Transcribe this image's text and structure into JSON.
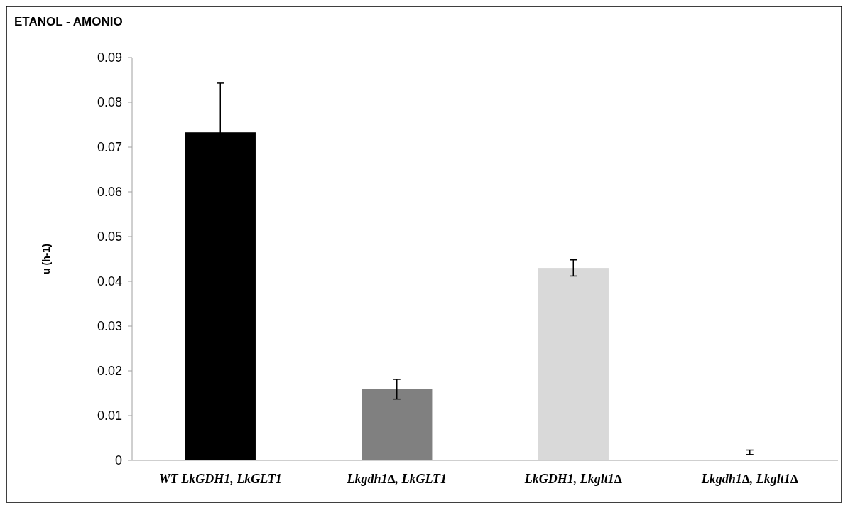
{
  "chart_data": {
    "type": "bar",
    "title": "ETANOL - AMONIO",
    "ylabel": "u (h-1)",
    "categories": [
      "WT LkGDH1, LkGLT1",
      "Lkgdh1∆, LkGLT1",
      "LkGDH1, Lkglt1∆",
      "Lkgdh1∆, Lkglt1∆"
    ],
    "values": [
      0.0733,
      0.0159,
      0.043,
      0
    ],
    "colors": [
      "#000000",
      "#808080",
      "#d9d9d9",
      "#d9d9d9"
    ],
    "errors": [
      0.011,
      0.0022,
      0.0018,
      [
        0.0013,
        0.0023
      ]
    ],
    "ylim": [
      0,
      0.09
    ],
    "yticks": [
      0,
      0.01,
      0.02,
      0.03,
      0.04,
      0.05,
      0.06,
      0.07,
      0.08,
      0.09
    ],
    "grid": false
  }
}
